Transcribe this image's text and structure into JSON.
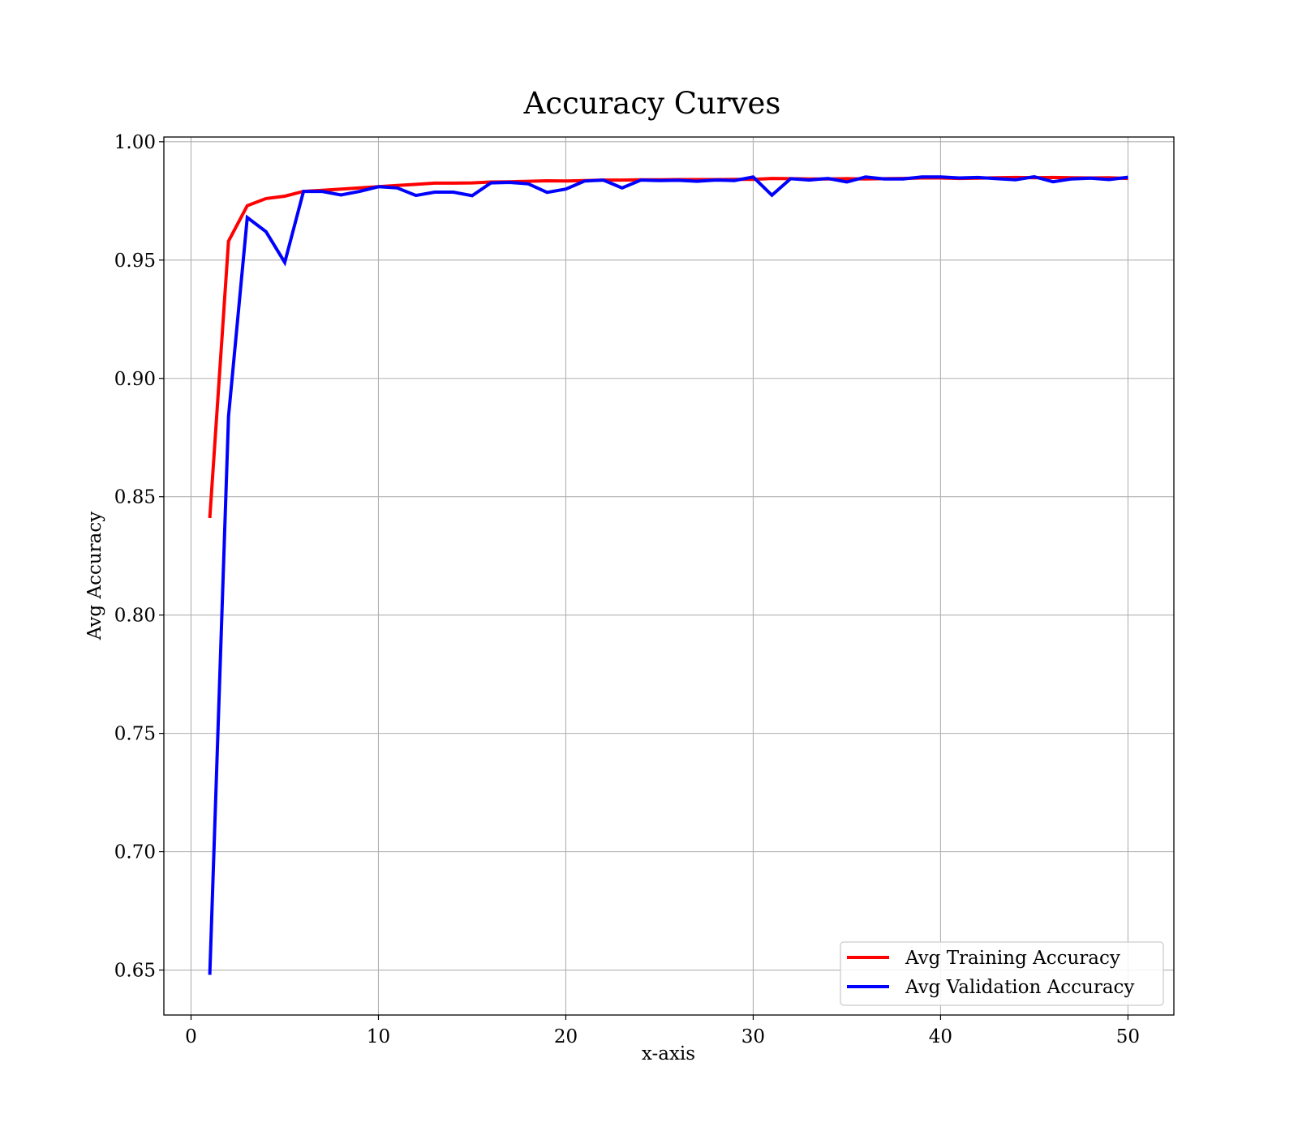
{
  "chart_data": {
    "type": "line",
    "title": "Accuracy Curves",
    "xlabel": "x-axis",
    "ylabel": "Avg Accuracy",
    "xlim": [
      -1.45,
      52.45
    ],
    "ylim": [
      0.631,
      1.002
    ],
    "xticks": [
      0,
      10,
      20,
      30,
      40,
      50
    ],
    "yticks": [
      0.65,
      0.7,
      0.75,
      0.8,
      0.85,
      0.9,
      0.95,
      1.0
    ],
    "ytick_labels": [
      "0.65",
      "0.70",
      "0.75",
      "0.80",
      "0.85",
      "0.90",
      "0.95",
      "1.00"
    ],
    "grid": true,
    "legend_position": "lower-right",
    "x": [
      1,
      2,
      3,
      4,
      5,
      6,
      7,
      8,
      9,
      10,
      11,
      12,
      13,
      14,
      15,
      16,
      17,
      18,
      19,
      20,
      21,
      22,
      23,
      24,
      25,
      26,
      27,
      28,
      29,
      30,
      31,
      32,
      33,
      34,
      35,
      36,
      37,
      38,
      39,
      40,
      41,
      42,
      43,
      44,
      45,
      46,
      47,
      48,
      49,
      50
    ],
    "series": [
      {
        "name": "Avg Training Accuracy",
        "color": "#ff0000",
        "values": [
          0.841,
          0.958,
          0.973,
          0.976,
          0.977,
          0.979,
          0.9795,
          0.98,
          0.9805,
          0.981,
          0.9815,
          0.982,
          0.9825,
          0.9825,
          0.9826,
          0.983,
          0.9831,
          0.9833,
          0.9835,
          0.9834,
          0.9836,
          0.9838,
          0.9838,
          0.9839,
          0.9839,
          0.984,
          0.984,
          0.984,
          0.9841,
          0.9841,
          0.9845,
          0.9844,
          0.9843,
          0.9843,
          0.9844,
          0.9843,
          0.9844,
          0.9845,
          0.9847,
          0.9847,
          0.9845,
          0.9846,
          0.9848,
          0.9849,
          0.9848,
          0.9849,
          0.9848,
          0.9847,
          0.9848,
          0.9845
        ]
      },
      {
        "name": "Avg Validation Accuracy",
        "color": "#0000ff",
        "values": [
          0.648,
          0.884,
          0.968,
          0.962,
          0.949,
          0.979,
          0.979,
          0.9775,
          0.979,
          0.981,
          0.9805,
          0.9773,
          0.9787,
          0.9787,
          0.9772,
          0.9826,
          0.9828,
          0.9822,
          0.9786,
          0.98,
          0.9834,
          0.9838,
          0.9805,
          0.9838,
          0.9836,
          0.9837,
          0.9833,
          0.9838,
          0.9836,
          0.9851,
          0.9774,
          0.9844,
          0.9838,
          0.9845,
          0.983,
          0.9851,
          0.9843,
          0.9843,
          0.9851,
          0.9851,
          0.9847,
          0.9849,
          0.9844,
          0.9839,
          0.9852,
          0.9831,
          0.9843,
          0.9846,
          0.984,
          0.985
        ]
      }
    ]
  }
}
